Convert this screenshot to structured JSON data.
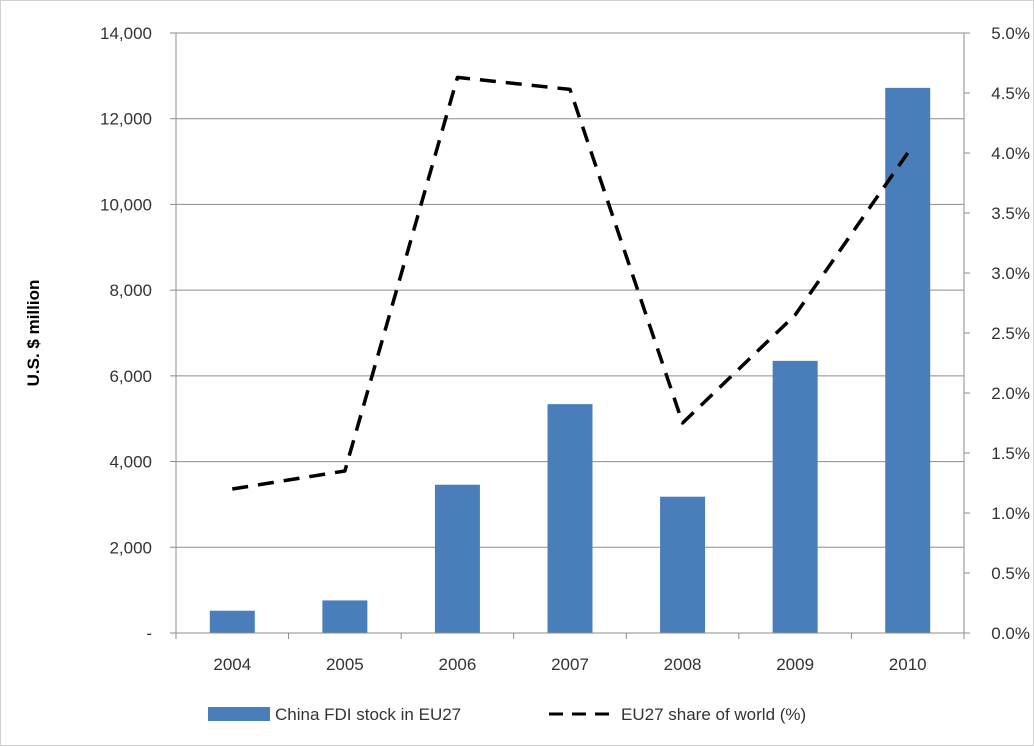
{
  "chart_data": {
    "type": "bar",
    "categories": [
      "2004",
      "2005",
      "2006",
      "2007",
      "2008",
      "2009",
      "2010"
    ],
    "series": [
      {
        "name": "China FDI stock in EU27",
        "type": "bar",
        "axis": "left",
        "color": "#4a7ebb",
        "values": [
          520,
          760,
          3460,
          5340,
          3180,
          6350,
          12720
        ]
      },
      {
        "name": "EU27 share of world (%)",
        "type": "line",
        "style": "dashed",
        "axis": "right",
        "color": "#000000",
        "values": [
          1.2,
          1.35,
          4.63,
          4.53,
          1.75,
          2.65,
          4.0
        ]
      }
    ],
    "ylabel": "U.S. $ million",
    "ylim": [
      0,
      14000
    ],
    "y_ticks": [
      "-",
      "2,000",
      "4,000",
      "6,000",
      "8,000",
      "10,000",
      "12,000",
      "14,000"
    ],
    "y2lim": [
      0,
      5
    ],
    "y2_ticks": [
      "0.0%",
      "0.5%",
      "1.0%",
      "1.5%",
      "2.0%",
      "2.5%",
      "3.0%",
      "3.5%",
      "4.0%",
      "4.5%",
      "5.0%"
    ],
    "grid": true,
    "legend_position": "bottom"
  }
}
